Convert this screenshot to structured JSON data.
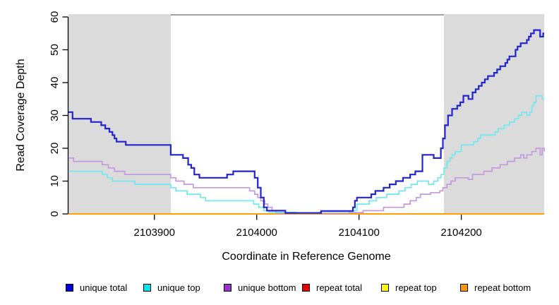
{
  "chart_data": {
    "type": "line",
    "subtype": "step-after",
    "title": "",
    "xlabel": "Coordinate in Reference Genome",
    "ylabel": "Read Coverage Depth",
    "xlim": [
      2103816,
      2104281
    ],
    "ylim": [
      0,
      60
    ],
    "grid": false,
    "legend_position": "bottom",
    "x_ticks": [
      {
        "value": 2103900,
        "label": "2103900"
      },
      {
        "value": 2104000,
        "label": "2104000"
      },
      {
        "value": 2104100,
        "label": "2104100"
      },
      {
        "value": 2104200,
        "label": "2104200"
      }
    ],
    "y_ticks": [
      {
        "value": 0,
        "label": "0"
      },
      {
        "value": 10,
        "label": "10"
      },
      {
        "value": 20,
        "label": "20"
      },
      {
        "value": 30,
        "label": "30"
      },
      {
        "value": 40,
        "label": "40"
      },
      {
        "value": 50,
        "label": "50"
      },
      {
        "value": 60,
        "label": "60"
      }
    ],
    "shaded_regions": [
      {
        "x0": 2103816,
        "x1": 2103916,
        "color": "#DBDBDB"
      },
      {
        "x0": 2104183,
        "x1": 2104281,
        "color": "#DBDBDB"
      }
    ],
    "top_border_segment": {
      "x0": 2103916,
      "x1": 2104183,
      "color": "#808080"
    },
    "draw_order": [
      "repeat total",
      "repeat top",
      "repeat bottom",
      "unique bottom",
      "unique top",
      "unique total"
    ],
    "series": [
      {
        "name": "unique total",
        "line_color": "#2323CF",
        "legend_color": "#0000E0",
        "line_width": 2.2,
        "points": [
          [
            2103816,
            31
          ],
          [
            2103820,
            29
          ],
          [
            2103838,
            28
          ],
          [
            2103848,
            27
          ],
          [
            2103852,
            26
          ],
          [
            2103856,
            25
          ],
          [
            2103859,
            24
          ],
          [
            2103861,
            23
          ],
          [
            2103863,
            22
          ],
          [
            2103872,
            21
          ],
          [
            2103916,
            18
          ],
          [
            2103928,
            17
          ],
          [
            2103933,
            15
          ],
          [
            2103936,
            14
          ],
          [
            2103939,
            12
          ],
          [
            2103944,
            11
          ],
          [
            2103971,
            12
          ],
          [
            2103977,
            13
          ],
          [
            2103998,
            11
          ],
          [
            2104001,
            8
          ],
          [
            2104004,
            5
          ],
          [
            2104007,
            2
          ],
          [
            2104010,
            1
          ],
          [
            2104028,
            0.3
          ],
          [
            2104063,
            0.9
          ],
          [
            2104094,
            2
          ],
          [
            2104096,
            4
          ],
          [
            2104098,
            5
          ],
          [
            2104112,
            6
          ],
          [
            2104116,
            7
          ],
          [
            2104124,
            8
          ],
          [
            2104130,
            9
          ],
          [
            2104136,
            10
          ],
          [
            2104143,
            11
          ],
          [
            2104150,
            12
          ],
          [
            2104155,
            13
          ],
          [
            2104162,
            18
          ],
          [
            2104173,
            17
          ],
          [
            2104180,
            20
          ],
          [
            2104182,
            23
          ],
          [
            2104184,
            27
          ],
          [
            2104187,
            30
          ],
          [
            2104191,
            32
          ],
          [
            2104196,
            33
          ],
          [
            2104199,
            34
          ],
          [
            2104202,
            36
          ],
          [
            2104207,
            35
          ],
          [
            2104211,
            37
          ],
          [
            2104214,
            38
          ],
          [
            2104217,
            39
          ],
          [
            2104220,
            40
          ],
          [
            2104223,
            41
          ],
          [
            2104226,
            42
          ],
          [
            2104232,
            43
          ],
          [
            2104235,
            44
          ],
          [
            2104238,
            45
          ],
          [
            2104243,
            46
          ],
          [
            2104245,
            47
          ],
          [
            2104247,
            48
          ],
          [
            2104253,
            50
          ],
          [
            2104255,
            51
          ],
          [
            2104258,
            52
          ],
          [
            2104264,
            53
          ],
          [
            2104266,
            54
          ],
          [
            2104268,
            55
          ],
          [
            2104271,
            56
          ],
          [
            2104277,
            54
          ],
          [
            2104280,
            55
          ],
          [
            2104281,
            55
          ]
        ]
      },
      {
        "name": "unique top",
        "line_color": "#72E8EF",
        "legend_color": "#00E5EE",
        "line_width": 1.7,
        "points": [
          [
            2103816,
            13
          ],
          [
            2103849,
            12
          ],
          [
            2103854,
            11
          ],
          [
            2103859,
            10
          ],
          [
            2103881,
            9
          ],
          [
            2103916,
            8
          ],
          [
            2103921,
            7
          ],
          [
            2103932,
            6
          ],
          [
            2103945,
            5
          ],
          [
            2103950,
            4
          ],
          [
            2103997,
            3
          ],
          [
            2104002,
            2
          ],
          [
            2104007,
            1
          ],
          [
            2104012,
            0.5
          ],
          [
            2104038,
            0.2
          ],
          [
            2104062,
            0.7
          ],
          [
            2104094,
            1
          ],
          [
            2104098,
            3
          ],
          [
            2104110,
            4
          ],
          [
            2104117,
            5
          ],
          [
            2104127,
            6
          ],
          [
            2104139,
            7
          ],
          [
            2104145,
            8
          ],
          [
            2104151,
            9
          ],
          [
            2104157,
            10
          ],
          [
            2104168,
            9
          ],
          [
            2104173,
            10
          ],
          [
            2104177,
            11
          ],
          [
            2104180,
            12
          ],
          [
            2104183,
            14
          ],
          [
            2104186,
            16
          ],
          [
            2104189,
            17
          ],
          [
            2104191,
            18
          ],
          [
            2104194,
            19
          ],
          [
            2104200,
            21
          ],
          [
            2104212,
            22
          ],
          [
            2104216,
            23
          ],
          [
            2104219,
            24
          ],
          [
            2104233,
            25
          ],
          [
            2104236,
            26
          ],
          [
            2104242,
            27
          ],
          [
            2104247,
            28
          ],
          [
            2104252,
            29
          ],
          [
            2104256,
            30
          ],
          [
            2104259,
            31
          ],
          [
            2104264,
            30
          ],
          [
            2104267,
            31
          ],
          [
            2104269,
            33
          ],
          [
            2104271,
            34
          ],
          [
            2104273,
            36
          ],
          [
            2104279,
            35
          ],
          [
            2104281,
            35
          ]
        ]
      },
      {
        "name": "unique bottom",
        "line_color": "#C49ADF",
        "legend_color": "#9932CC",
        "line_width": 1.7,
        "points": [
          [
            2103816,
            17
          ],
          [
            2103821,
            16
          ],
          [
            2103849,
            15
          ],
          [
            2103855,
            14
          ],
          [
            2103861,
            13
          ],
          [
            2103871,
            12
          ],
          [
            2103916,
            11
          ],
          [
            2103921,
            10
          ],
          [
            2103929,
            9
          ],
          [
            2103938,
            8
          ],
          [
            2103993,
            7
          ],
          [
            2103998,
            6
          ],
          [
            2104001,
            5
          ],
          [
            2104004,
            4
          ],
          [
            2104008,
            3
          ],
          [
            2104011,
            2
          ],
          [
            2104015,
            1
          ],
          [
            2104019,
            0.2
          ],
          [
            2104090,
            0.4
          ],
          [
            2104104,
            1
          ],
          [
            2104124,
            2
          ],
          [
            2104144,
            3
          ],
          [
            2104150,
            4
          ],
          [
            2104156,
            5
          ],
          [
            2104160,
            6
          ],
          [
            2104170,
            6.5
          ],
          [
            2104179,
            7
          ],
          [
            2104182,
            8
          ],
          [
            2104186,
            9
          ],
          [
            2104190,
            10
          ],
          [
            2104194,
            11
          ],
          [
            2104207,
            10.5
          ],
          [
            2104211,
            12
          ],
          [
            2104222,
            13
          ],
          [
            2104230,
            14
          ],
          [
            2104238,
            15
          ],
          [
            2104245,
            16
          ],
          [
            2104252,
            17
          ],
          [
            2104258,
            18
          ],
          [
            2104261,
            17
          ],
          [
            2104264,
            18
          ],
          [
            2104269,
            19
          ],
          [
            2104273,
            20
          ],
          [
            2104277,
            18
          ],
          [
            2104279,
            20
          ],
          [
            2104281,
            19
          ]
        ]
      },
      {
        "name": "repeat total",
        "line_color": "#E60000",
        "legend_color": "#E60000",
        "line_width": 1.7,
        "points": [
          [
            2103816,
            0
          ],
          [
            2104281,
            0
          ]
        ]
      },
      {
        "name": "repeat top",
        "line_color": "#FFFF00",
        "legend_color": "#FFFF00",
        "line_width": 1.7,
        "points": [
          [
            2103816,
            0
          ],
          [
            2104281,
            0
          ]
        ]
      },
      {
        "name": "repeat bottom",
        "line_color": "#FF9E00",
        "legend_color": "#FF9900",
        "line_width": 2,
        "points": [
          [
            2103816,
            0
          ],
          [
            2104281,
            0
          ]
        ]
      }
    ]
  },
  "legend": {
    "items": [
      {
        "label": "unique total"
      },
      {
        "label": "unique top"
      },
      {
        "label": "unique bottom"
      },
      {
        "label": "repeat total"
      },
      {
        "label": "repeat top"
      },
      {
        "label": "repeat bottom"
      }
    ]
  }
}
